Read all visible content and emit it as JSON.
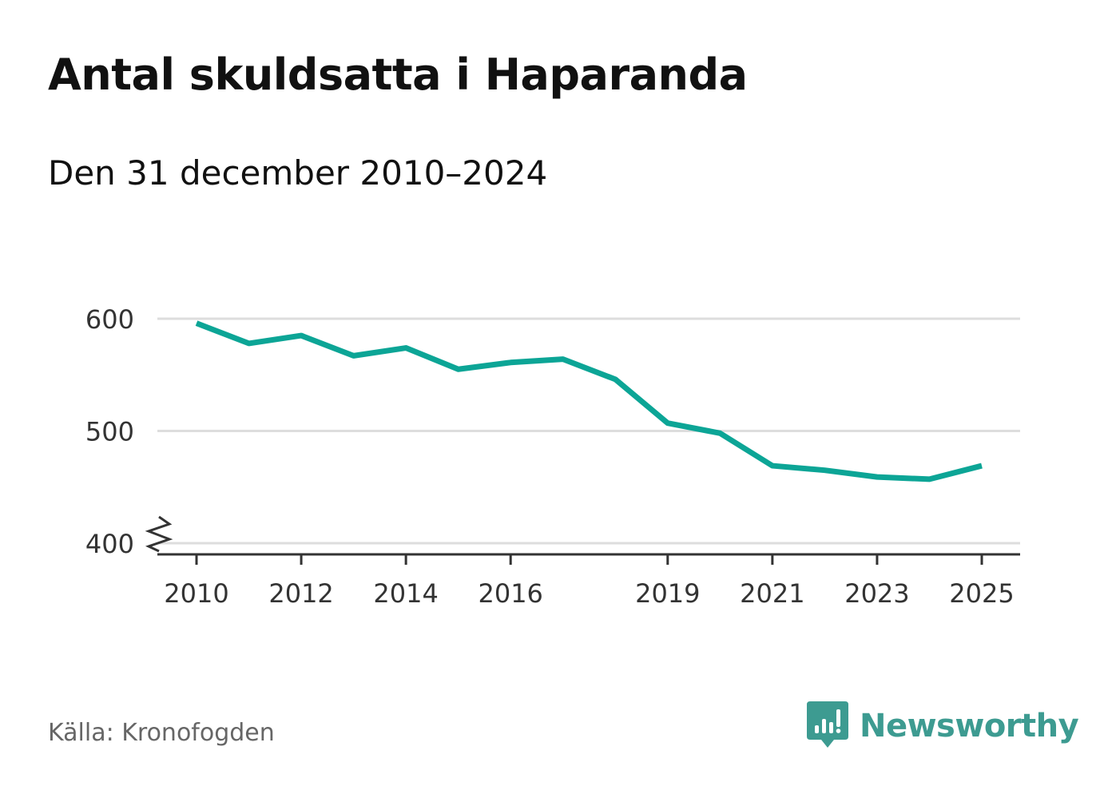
{
  "title": "Antal skuldsatta i Haparanda",
  "subtitle": "Den 31 december 2010–2024",
  "source": "Källa: Kronofogden",
  "brand": {
    "name": "Newsworthy",
    "icon": "newsworthy-logo-icon",
    "color": "#3d9b91"
  },
  "colors": {
    "line": "#0ca596",
    "grid": "#dddddd",
    "axis": "#333333"
  },
  "chart_data": {
    "type": "line",
    "title": "Antal skuldsatta i Haparanda",
    "xlabel": "",
    "ylabel": "",
    "series": [
      {
        "name": "Antal skuldsatta",
        "x": [
          2010,
          2011,
          2012,
          2013,
          2014,
          2015,
          2016,
          2017,
          2018,
          2019,
          2020,
          2021,
          2022,
          2023,
          2024,
          2025
        ],
        "values": [
          596,
          578,
          585,
          567,
          574,
          555,
          561,
          564,
          546,
          507,
          498,
          469,
          465,
          459,
          457,
          469
        ]
      }
    ],
    "x_ticks": [
      2010,
      2012,
      2014,
      2016,
      2019,
      2021,
      2023,
      2025
    ],
    "y_ticks": [
      400,
      500,
      600
    ],
    "xlim": [
      2010,
      2025
    ],
    "ylim": [
      400,
      600
    ],
    "y_axis_break": true,
    "grid": true
  }
}
